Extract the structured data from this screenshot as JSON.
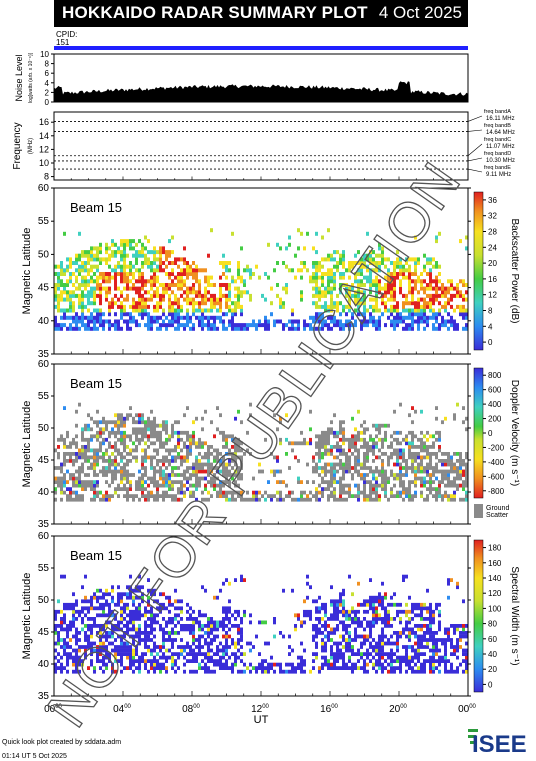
{
  "header": {
    "title": "HOKKAIDO RADAR SUMMARY PLOT",
    "date": "4 Oct 2025",
    "cpid_label": "CPID:",
    "cpid_value": "151",
    "accent_color": "#2020ff"
  },
  "noise_panel": {
    "ylabel": "Noise Level",
    "ylabel_sub": "log[watts (arb. x 10⁻⁶)]",
    "yticks": [
      "0",
      "2",
      "4",
      "6",
      "8",
      "10"
    ]
  },
  "freq_panel": {
    "ylabel": "Frequency",
    "unit": "(MHz)",
    "yticks": [
      "8",
      "10",
      "12",
      "14",
      "16"
    ],
    "bands": [
      {
        "name": "freq bandA",
        "mhz": "16.11 MHz"
      },
      {
        "name": "freq bandB",
        "mhz": "14.64 MHz"
      },
      {
        "name": "freq bandC",
        "mhz": "11.07 MHz"
      },
      {
        "name": "freq bandD",
        "mhz": "10.30 MHz"
      },
      {
        "name": "freq bandE",
        "mhz": "9.11 MHz"
      }
    ]
  },
  "chart_data": [
    {
      "type": "heatmap",
      "panel": "Backscatter Power",
      "beam_label": "Beam 15",
      "ylabel": "Magnetic Latitude",
      "ylim": [
        35,
        60
      ],
      "yticks": [
        "35",
        "40",
        "45",
        "50",
        "55",
        "60"
      ],
      "colorbar_label": "Backscatter Power (dB)",
      "colorbar_ticks": [
        "0",
        "4",
        "8",
        "12",
        "16",
        "20",
        "24",
        "28",
        "32",
        "36"
      ]
    },
    {
      "type": "heatmap",
      "panel": "Doppler Velocity",
      "beam_label": "Beam 15",
      "ylabel": "Magnetic Latitude",
      "ylim": [
        35,
        60
      ],
      "yticks": [
        "35",
        "40",
        "45",
        "50",
        "55",
        "60"
      ],
      "colorbar_label": "Doppler Velocity (m s⁻¹)",
      "colorbar_ticks": [
        "-800",
        "-600",
        "-400",
        "-200",
        "0",
        "200",
        "400",
        "600",
        "800"
      ],
      "ground_scatter_label": [
        "Ground",
        "Scatter"
      ]
    },
    {
      "type": "heatmap",
      "panel": "Spectral Width",
      "beam_label": "Beam 15",
      "ylabel": "Magnetic Latitude",
      "ylim": [
        35,
        60
      ],
      "yticks": [
        "35",
        "40",
        "45",
        "50",
        "55",
        "60"
      ],
      "colorbar_label": "Spectral Width (m s⁻¹)",
      "colorbar_ticks": [
        "0",
        "20",
        "40",
        "60",
        "80",
        "100",
        "120",
        "140",
        "160",
        "180"
      ]
    }
  ],
  "xaxis": {
    "label": "UT",
    "ticks": [
      "00",
      "04",
      "08",
      "12",
      "16",
      "20",
      "00"
    ],
    "tick_suffix": "00"
  },
  "watermark": "NOT FOR PUBLICATION",
  "footer": {
    "line1": "Quick look plot created by sddata.adm",
    "line2": "01:14 UT 5 Oct 2025",
    "logo": "ISEE"
  }
}
